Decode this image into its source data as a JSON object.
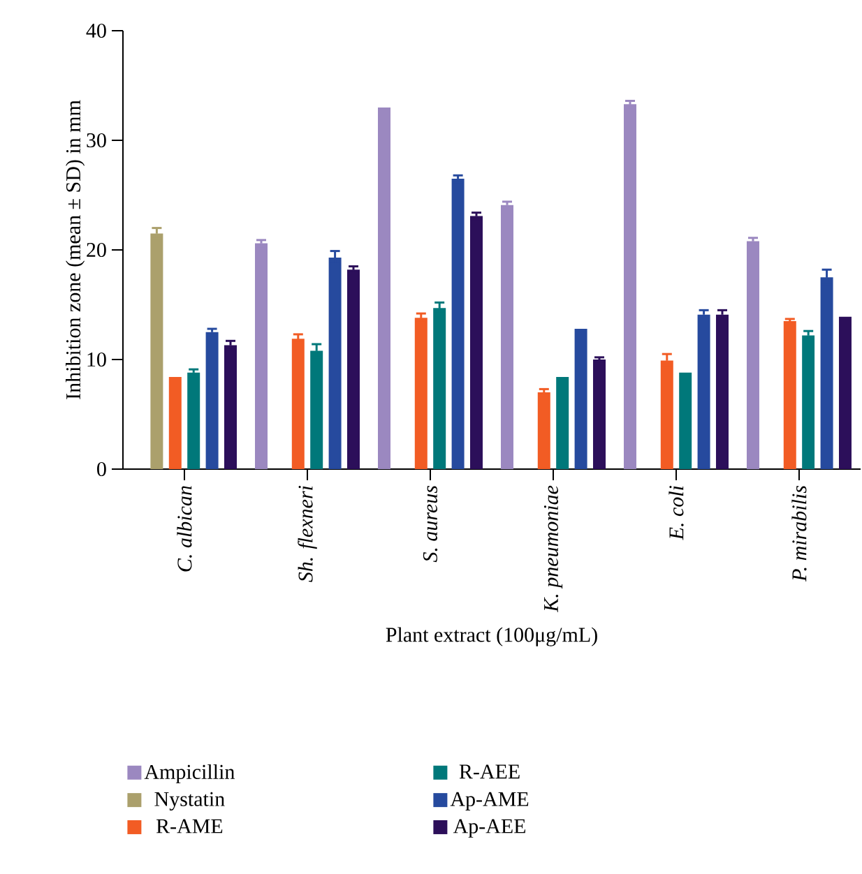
{
  "chart_data": {
    "type": "bar",
    "xlabel": "Plant extract (100μg/mL)",
    "ylabel": "Inhibition zone (mean ± SD) in mm",
    "categories": [
      "C. albican",
      "Sh. flexneri",
      "S. aureus",
      "K. pneumoniae",
      "E. coli",
      "P. mirabilis"
    ],
    "series": [
      {
        "name": "Ampicillin",
        "color": "#9b88c0",
        "values": [
          null,
          20.6,
          33.0,
          24.1,
          33.3,
          20.8
        ],
        "errors": [
          null,
          0.3,
          null,
          0.3,
          0.3,
          0.3
        ]
      },
      {
        "name": "Nystatin",
        "color": "#aba06c",
        "values": [
          21.5,
          null,
          null,
          null,
          null,
          null
        ],
        "errors": [
          0.5,
          null,
          null,
          null,
          null,
          null
        ]
      },
      {
        "name": "R-AME",
        "color": "#f25c24",
        "values": [
          8.4,
          11.9,
          13.8,
          7.0,
          9.9,
          13.5
        ],
        "errors": [
          null,
          0.4,
          0.4,
          0.3,
          0.6,
          0.2
        ]
      },
      {
        "name": "R-AEE",
        "color": "#00787a",
        "values": [
          8.8,
          10.8,
          14.7,
          8.4,
          8.8,
          12.2
        ],
        "errors": [
          0.3,
          0.6,
          0.5,
          null,
          null,
          0.4
        ]
      },
      {
        "name": "Ap-AME",
        "color": "#264a9e",
        "values": [
          12.5,
          19.3,
          26.5,
          12.8,
          14.1,
          17.5
        ],
        "errors": [
          0.3,
          0.6,
          0.3,
          null,
          0.4,
          0.7
        ]
      },
      {
        "name": "Ap-AEE",
        "color": "#2c0f5a",
        "values": [
          11.3,
          18.2,
          23.1,
          10.0,
          14.1,
          13.9
        ],
        "errors": [
          0.4,
          0.3,
          0.3,
          0.2,
          0.4,
          null
        ]
      }
    ],
    "ylim": [
      0,
      40
    ],
    "yticks": [
      0,
      10,
      20,
      30,
      40
    ],
    "legend": "bottom",
    "grid": false
  }
}
